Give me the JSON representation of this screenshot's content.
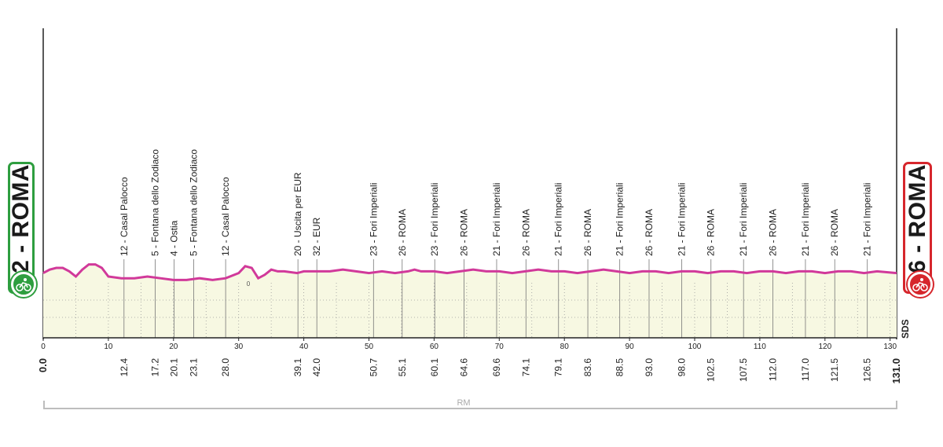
{
  "start": {
    "label": "32 - ROMA",
    "color": "#2e9e3f"
  },
  "finish": {
    "label": "26 - ROMA",
    "color": "#d6262c"
  },
  "route_label": "RM",
  "sponsor_logo": "SDS",
  "marker_zero": "0",
  "colors": {
    "profile_line": "#d1399a",
    "profile_fill": "#f7f8e2",
    "grid": "#666666"
  },
  "x_axis": {
    "ticks": [
      "0",
      "10",
      "20",
      "30",
      "40",
      "50",
      "60",
      "70",
      "80",
      "90",
      "100",
      "110",
      "120",
      "130"
    ]
  },
  "distances": [
    {
      "km": "0.0",
      "bold": true
    },
    {
      "km": "12.4"
    },
    {
      "km": "17.2"
    },
    {
      "km": "20.1"
    },
    {
      "km": "23.1"
    },
    {
      "km": "28.0"
    },
    {
      "km": "39.1"
    },
    {
      "km": "42.0"
    },
    {
      "km": "50.7"
    },
    {
      "km": "55.1"
    },
    {
      "km": "60.1"
    },
    {
      "km": "64.6"
    },
    {
      "km": "69.6"
    },
    {
      "km": "74.1"
    },
    {
      "km": "79.1"
    },
    {
      "km": "83.6"
    },
    {
      "km": "88.5"
    },
    {
      "km": "93.0"
    },
    {
      "km": "98.0"
    },
    {
      "km": "102.5"
    },
    {
      "km": "107.5"
    },
    {
      "km": "112.0"
    },
    {
      "km": "117.0"
    },
    {
      "km": "121.5"
    },
    {
      "km": "126.5"
    },
    {
      "km": "131.0",
      "bold": true
    }
  ],
  "waypoints": [
    {
      "km": 12.4,
      "label": "12 - Casal Palocco"
    },
    {
      "km": 17.2,
      "label": "5 - Fontana dello Zodiaco"
    },
    {
      "km": 20.1,
      "label": "4 - Ostia"
    },
    {
      "km": 23.1,
      "label": "5 - Fontana dello Zodiaco"
    },
    {
      "km": 28.0,
      "label": "12 - Casal Palocco"
    },
    {
      "km": 39.1,
      "label": "20 - Uscita per EUR"
    },
    {
      "km": 42.0,
      "label": "32 - EUR"
    },
    {
      "km": 50.7,
      "label": "23 - Fori Imperiali"
    },
    {
      "km": 55.1,
      "label": "26 - ROMA"
    },
    {
      "km": 60.1,
      "label": "23 - Fori Imperiali"
    },
    {
      "km": 64.6,
      "label": "26 - ROMA"
    },
    {
      "km": 69.6,
      "label": "21 - Fori Imperiali"
    },
    {
      "km": 74.1,
      "label": "26 - ROMA"
    },
    {
      "km": 79.1,
      "label": "21 - Fori Imperiali"
    },
    {
      "km": 83.6,
      "label": "26 - ROMA"
    },
    {
      "km": 88.5,
      "label": "21 - Fori Imperiali"
    },
    {
      "km": 93.0,
      "label": "26 - ROMA"
    },
    {
      "km": 98.0,
      "label": "21 - Fori Imperiali"
    },
    {
      "km": 102.5,
      "label": "26 - ROMA"
    },
    {
      "km": 107.5,
      "label": "21 - Fori Imperiali"
    },
    {
      "km": 112.0,
      "label": "26 - ROMA"
    },
    {
      "km": 117.0,
      "label": "21 - Fori Imperiali"
    },
    {
      "km": 121.5,
      "label": "26 - ROMA"
    },
    {
      "km": 126.5,
      "label": "21 - Fori Imperiali"
    }
  ],
  "elevation_profile": [
    [
      0,
      32
    ],
    [
      1,
      34
    ],
    [
      2,
      35
    ],
    [
      3,
      35
    ],
    [
      4,
      33
    ],
    [
      5,
      30
    ],
    [
      6,
      34
    ],
    [
      7,
      37
    ],
    [
      8,
      37
    ],
    [
      9,
      35
    ],
    [
      10,
      30
    ],
    [
      12,
      29
    ],
    [
      14,
      29
    ],
    [
      16,
      30
    ],
    [
      18,
      29
    ],
    [
      20,
      28
    ],
    [
      22,
      28
    ],
    [
      24,
      29
    ],
    [
      26,
      28
    ],
    [
      28,
      29
    ],
    [
      30,
      32
    ],
    [
      31,
      36
    ],
    [
      32,
      35
    ],
    [
      33,
      29
    ],
    [
      34,
      31
    ],
    [
      35,
      34
    ],
    [
      36,
      33
    ],
    [
      37,
      33
    ],
    [
      39,
      32
    ],
    [
      40,
      33
    ],
    [
      42,
      33
    ],
    [
      44,
      33
    ],
    [
      46,
      34
    ],
    [
      48,
      33
    ],
    [
      50,
      32
    ],
    [
      52,
      33
    ],
    [
      54,
      32
    ],
    [
      56,
      33
    ],
    [
      57,
      34
    ],
    [
      58,
      33
    ],
    [
      60,
      33
    ],
    [
      62,
      32
    ],
    [
      64,
      33
    ],
    [
      66,
      34
    ],
    [
      68,
      33
    ],
    [
      70,
      33
    ],
    [
      72,
      32
    ],
    [
      74,
      33
    ],
    [
      76,
      34
    ],
    [
      78,
      33
    ],
    [
      80,
      33
    ],
    [
      82,
      32
    ],
    [
      84,
      33
    ],
    [
      86,
      34
    ],
    [
      88,
      33
    ],
    [
      90,
      32
    ],
    [
      92,
      33
    ],
    [
      94,
      33
    ],
    [
      96,
      32
    ],
    [
      98,
      33
    ],
    [
      100,
      33
    ],
    [
      102,
      32
    ],
    [
      104,
      33
    ],
    [
      106,
      33
    ],
    [
      108,
      32
    ],
    [
      110,
      33
    ],
    [
      112,
      33
    ],
    [
      114,
      32
    ],
    [
      116,
      33
    ],
    [
      118,
      33
    ],
    [
      120,
      32
    ],
    [
      122,
      33
    ],
    [
      124,
      33
    ],
    [
      126,
      32
    ],
    [
      128,
      33
    ],
    [
      131,
      32
    ]
  ]
}
